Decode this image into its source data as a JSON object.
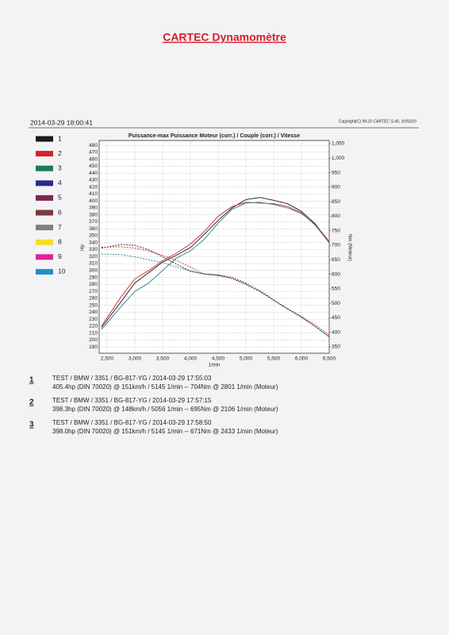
{
  "header": {
    "title": "CARTEC Dynamomètre",
    "date": "2014-03-29 18:00:41",
    "copyright": "Copyright(C) 99-10 CARTEC S.40, 10/02/10"
  },
  "chart_data": {
    "type": "line",
    "title": "Puissance-max Puissance Moteur (corr.) / Couple (corr.) / Vitesse",
    "xlabel": "1/min",
    "ylabel": "Hp",
    "y2label": "Nm (Moteur)",
    "legend": [
      {
        "label": "1",
        "color": "#1a1a1a"
      },
      {
        "label": "2",
        "color": "#d8202a"
      },
      {
        "label": "3",
        "color": "#1f7a5a"
      },
      {
        "label": "4",
        "color": "#2a2a8a"
      },
      {
        "label": "5",
        "color": "#7a2a50"
      },
      {
        "label": "6",
        "color": "#7a3a3a"
      },
      {
        "label": "7",
        "color": "#808080"
      },
      {
        "label": "8",
        "color": "#f0e020"
      },
      {
        "label": "9",
        "color": "#e0209a"
      },
      {
        "label": "10",
        "color": "#2090c0"
      }
    ],
    "x": [
      2400,
      2750,
      3000,
      3250,
      3500,
      3750,
      4000,
      4250,
      4500,
      4750,
      5000,
      5250,
      5500,
      5750,
      6000,
      6250,
      6500
    ],
    "series": [
      {
        "color": "#1a1a1a",
        "axis": "y",
        "style": "solid",
        "values": [
          218,
          255,
          282,
          297,
          312,
          322,
          333,
          352,
          372,
          390,
          402,
          405,
          401,
          396,
          385,
          367,
          340
        ]
      },
      {
        "color": "#d8202a",
        "axis": "y",
        "style": "solid",
        "values": [
          220,
          262,
          288,
          300,
          314,
          325,
          338,
          356,
          378,
          392,
          398,
          397,
          396,
          392,
          383,
          365,
          340
        ]
      },
      {
        "color": "#2a7a8a",
        "axis": "y",
        "style": "solid",
        "values": [
          215,
          248,
          270,
          282,
          300,
          318,
          328,
          345,
          368,
          388,
          397,
          398,
          395,
          390,
          382,
          366,
          342
        ]
      },
      {
        "color": "#1a1a1a",
        "axis": "y2",
        "style": "dashed",
        "values": [
          690,
          703,
          700,
          685,
          660,
          635,
          610,
          602,
          597,
          585,
          565,
          540,
          510,
          480,
          452,
          420,
          385
        ]
      },
      {
        "color": "#d8202a",
        "axis": "y2",
        "style": "dashed",
        "values": [
          693,
          695,
          690,
          680,
          665,
          648,
          625,
          600,
          595,
          588,
          568,
          545,
          512,
          482,
          455,
          425,
          390
        ]
      },
      {
        "color": "#2a7a8a",
        "axis": "y2",
        "style": "dashed",
        "values": [
          670,
          668,
          660,
          650,
          640,
          625,
          612,
          600,
          598,
          590,
          570,
          543,
          512,
          482,
          452,
          420,
          383
        ]
      }
    ],
    "xlim": [
      2357,
      6500
    ],
    "xticks": [
      {
        "value": 2500,
        "label": "2,500"
      },
      {
        "value": 3000,
        "label": "3,000"
      },
      {
        "value": 3500,
        "label": "3,500"
      },
      {
        "value": 4000,
        "label": "4,000"
      },
      {
        "value": 4500,
        "label": "4,500"
      },
      {
        "value": 5000,
        "label": "5,000"
      },
      {
        "value": 5500,
        "label": "5,500"
      },
      {
        "value": 6000,
        "label": "6,000"
      },
      {
        "value": 6500,
        "label": "6,500"
      }
    ],
    "ylim": [
      181,
      487
    ],
    "yticks": [
      190,
      200,
      210,
      220,
      230,
      240,
      250,
      260,
      270,
      280,
      290,
      300,
      310,
      320,
      330,
      340,
      350,
      360,
      370,
      380,
      390,
      400,
      410,
      420,
      430,
      440,
      450,
      460,
      470,
      480
    ],
    "y2lim": [
      328,
      1061
    ],
    "y2ticks": [
      350,
      400,
      450,
      500,
      550,
      600,
      650,
      700,
      750,
      800,
      850,
      900,
      950,
      {
        "value": 1000,
        "label": "1,000"
      },
      {
        "value": 1050,
        "label": "1,050"
      }
    ],
    "grid": true
  },
  "results": [
    {
      "number": "1",
      "line1": "TEST / BMW / 3351 / BG-817-YG / 2014-03-29 17:55:03",
      "line2": "405.4hp (DIN 70020) @ 151km/h / 5145 1/min -- 704Nm @ 2801 1/min (Moteur)"
    },
    {
      "number": "2",
      "line1": "TEST / BMW / 3351 / BG-817-YG / 2014-03-29 17:57:15",
      "line2": "398.3hp (DIN 70020) @ 148km/h / 5056 1/min -- 695Nm @ 2106 1/min (Moteur)"
    },
    {
      "number": "3",
      "line1": "TEST / BMW / 3351 / BG-817-YG / 2014-03-29 17:58:50",
      "line2": "398.0hp (DIN 70020) @ 151km/h / 5145 1/min -- 671Nm @ 2433 1/min (Moteur)"
    }
  ]
}
